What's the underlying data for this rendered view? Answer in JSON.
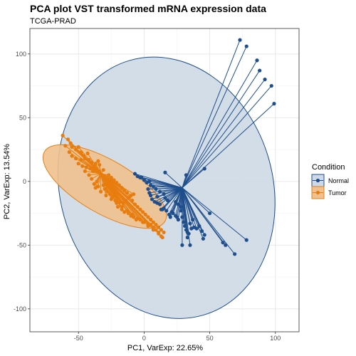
{
  "chart_data": {
    "type": "scatter",
    "title": "PCA plot VST transformed mRNA expression data",
    "subtitle": "TCGA-PRAD",
    "xlabel": "PC1, VarExp: 22.65%",
    "ylabel": "PC2, VarExp: 13.54%",
    "xlim": [
      -87,
      118
    ],
    "ylim": [
      -118,
      120
    ],
    "xticks": [
      -50,
      0,
      50,
      100
    ],
    "yticks": [
      -100,
      -50,
      0,
      50,
      100
    ],
    "x_tick_labels": [
      "-50",
      "0",
      "50",
      "100"
    ],
    "y_tick_labels": [
      "-100",
      "-50",
      "0",
      "50",
      "100"
    ],
    "grid": true,
    "legend": {
      "title": "Condition",
      "position": "right",
      "entries": [
        "Normal",
        "Tumor"
      ]
    },
    "series": [
      {
        "name": "Normal",
        "color": "#1f4e8c",
        "fill": "#cdd9e6",
        "centroid": [
          29,
          -5
        ],
        "ellipse": {
          "center": [
            17,
            -5
          ],
          "rx": 81,
          "ry": 104,
          "rotation": -16
        },
        "points": [
          [
            73,
            111
          ],
          [
            78,
            106
          ],
          [
            86,
            95
          ],
          [
            88,
            87
          ],
          [
            92,
            80
          ],
          [
            97,
            75
          ],
          [
            99,
            61
          ],
          [
            16,
            7
          ],
          [
            32,
            5
          ],
          [
            46,
            10
          ],
          [
            -7,
            6
          ],
          [
            -5,
            4
          ],
          [
            -2,
            3
          ],
          [
            -3,
            3
          ],
          [
            0,
            1
          ],
          [
            2,
            -1
          ],
          [
            4,
            0
          ],
          [
            5,
            -3
          ],
          [
            7,
            -4
          ],
          [
            9,
            -6
          ],
          [
            3,
            -6
          ],
          [
            4,
            -9
          ],
          [
            5,
            -11
          ],
          [
            6,
            -14
          ],
          [
            8,
            -16
          ],
          [
            10,
            -17
          ],
          [
            12,
            -18
          ],
          [
            13,
            -22
          ],
          [
            14,
            -22
          ],
          [
            15,
            -21
          ],
          [
            17,
            -23
          ],
          [
            19,
            -26
          ],
          [
            21,
            -24
          ],
          [
            22,
            -25
          ],
          [
            20,
            -28
          ],
          [
            24,
            -27
          ],
          [
            25,
            -28
          ],
          [
            26,
            -30
          ],
          [
            28,
            -23
          ],
          [
            29,
            -28
          ],
          [
            30,
            -32
          ],
          [
            31,
            -35
          ],
          [
            32,
            -38
          ],
          [
            33,
            -40
          ],
          [
            34,
            -41
          ],
          [
            35,
            -33
          ],
          [
            36,
            -37
          ],
          [
            37,
            -30
          ],
          [
            38,
            -36
          ],
          [
            40,
            -37
          ],
          [
            42,
            -35
          ],
          [
            44,
            -39
          ],
          [
            50,
            -25
          ],
          [
            45,
            -45
          ],
          [
            46,
            -42
          ],
          [
            60,
            -48
          ],
          [
            62,
            -50
          ],
          [
            69,
            -57
          ],
          [
            78,
            -46
          ],
          [
            24,
            -16
          ],
          [
            26,
            -18
          ],
          [
            28,
            -20
          ],
          [
            18,
            -15
          ],
          [
            16,
            -13
          ],
          [
            15,
            -10
          ],
          [
            12,
            -8
          ],
          [
            10,
            -12
          ],
          [
            29,
            -50
          ],
          [
            33,
            -44
          ],
          [
            35,
            -50
          ]
        ]
      },
      {
        "name": "Tumor",
        "color": "#e87d0e",
        "fill": "#f0c18e",
        "centroid": [
          -33,
          6
        ],
        "ellipse": {
          "center": [
            -30,
            -4
          ],
          "rx": 53,
          "ry": 21,
          "rotation": 30
        },
        "points": [
          [
            -62,
            36
          ],
          [
            -58,
            33
          ],
          [
            -56,
            30
          ],
          [
            -55,
            27
          ],
          [
            -52,
            25
          ],
          [
            -50,
            27
          ],
          [
            -48,
            23
          ],
          [
            -46,
            20
          ],
          [
            -45,
            18
          ],
          [
            -43,
            22
          ],
          [
            -42,
            17
          ],
          [
            -40,
            15
          ],
          [
            -38,
            12
          ],
          [
            -36,
            10
          ],
          [
            -34,
            8
          ],
          [
            -33,
            6
          ],
          [
            -32,
            5
          ],
          [
            -30,
            4
          ],
          [
            -29,
            2
          ],
          [
            -28,
            0
          ],
          [
            -27,
            -2
          ],
          [
            -26,
            -4
          ],
          [
            -25,
            -5
          ],
          [
            -24,
            -7
          ],
          [
            -23,
            -9
          ],
          [
            -22,
            -10
          ],
          [
            -21,
            -12
          ],
          [
            -20,
            -14
          ],
          [
            -18,
            -16
          ],
          [
            -16,
            -17
          ],
          [
            -14,
            -15
          ],
          [
            -12,
            -13
          ],
          [
            -10,
            -11
          ],
          [
            -8,
            -10
          ],
          [
            -40,
            2
          ],
          [
            -42,
            5
          ],
          [
            -45,
            8
          ],
          [
            -38,
            -2
          ],
          [
            -36,
            0
          ],
          [
            -35,
            -4
          ],
          [
            -31,
            -3
          ],
          [
            -30,
            -6
          ],
          [
            -28,
            -8
          ],
          [
            -26,
            -10
          ],
          [
            -24,
            -12
          ],
          [
            -22,
            -15
          ],
          [
            -20,
            -20
          ],
          [
            -17,
            -22
          ],
          [
            -15,
            -24
          ],
          [
            -12,
            -25
          ],
          [
            -10,
            -27
          ],
          [
            -8,
            -28
          ],
          [
            -6,
            -30
          ],
          [
            -3,
            -30
          ],
          [
            0,
            -32
          ],
          [
            3,
            -33
          ],
          [
            5,
            -34
          ],
          [
            7,
            -36
          ],
          [
            9,
            -38
          ],
          [
            11,
            -40
          ],
          [
            13,
            -43
          ],
          [
            -55,
            20
          ],
          [
            -50,
            14
          ],
          [
            -47,
            12
          ],
          [
            -44,
            11
          ],
          [
            -41,
            10
          ],
          [
            -39,
            8
          ],
          [
            -37,
            14
          ],
          [
            -35,
            16
          ],
          [
            -52,
            18
          ],
          [
            -60,
            28
          ],
          [
            -57,
            23
          ],
          [
            -48,
            17
          ],
          [
            -34,
            13
          ],
          [
            -31,
            9
          ],
          [
            -27,
            5
          ],
          [
            -25,
            3
          ],
          [
            -23,
            1
          ],
          [
            -21,
            -1
          ],
          [
            -19,
            -3
          ],
          [
            -17,
            -5
          ],
          [
            -15,
            -7
          ],
          [
            -13,
            -9
          ],
          [
            -11,
            -12
          ],
          [
            -9,
            -15
          ],
          [
            -7,
            -18
          ],
          [
            -5,
            -20
          ],
          [
            -3,
            -22
          ],
          [
            -1,
            -24
          ],
          [
            1,
            -26
          ],
          [
            3,
            -28
          ],
          [
            5,
            -30
          ],
          [
            7,
            -32
          ],
          [
            9,
            -34
          ],
          [
            11,
            -36
          ],
          [
            13,
            -38
          ],
          [
            15,
            -40
          ],
          [
            -37,
            -5
          ],
          [
            -33,
            -8
          ],
          [
            -29,
            -11
          ],
          [
            -25,
            -14
          ],
          [
            -21,
            -17
          ],
          [
            -17,
            -20
          ],
          [
            -13,
            -23
          ],
          [
            -9,
            -26
          ],
          [
            -5,
            -29
          ],
          [
            -1,
            -32
          ],
          [
            3,
            -35
          ],
          [
            7,
            -38
          ],
          [
            11,
            -41
          ],
          [
            14,
            -44
          ]
        ]
      }
    ]
  }
}
